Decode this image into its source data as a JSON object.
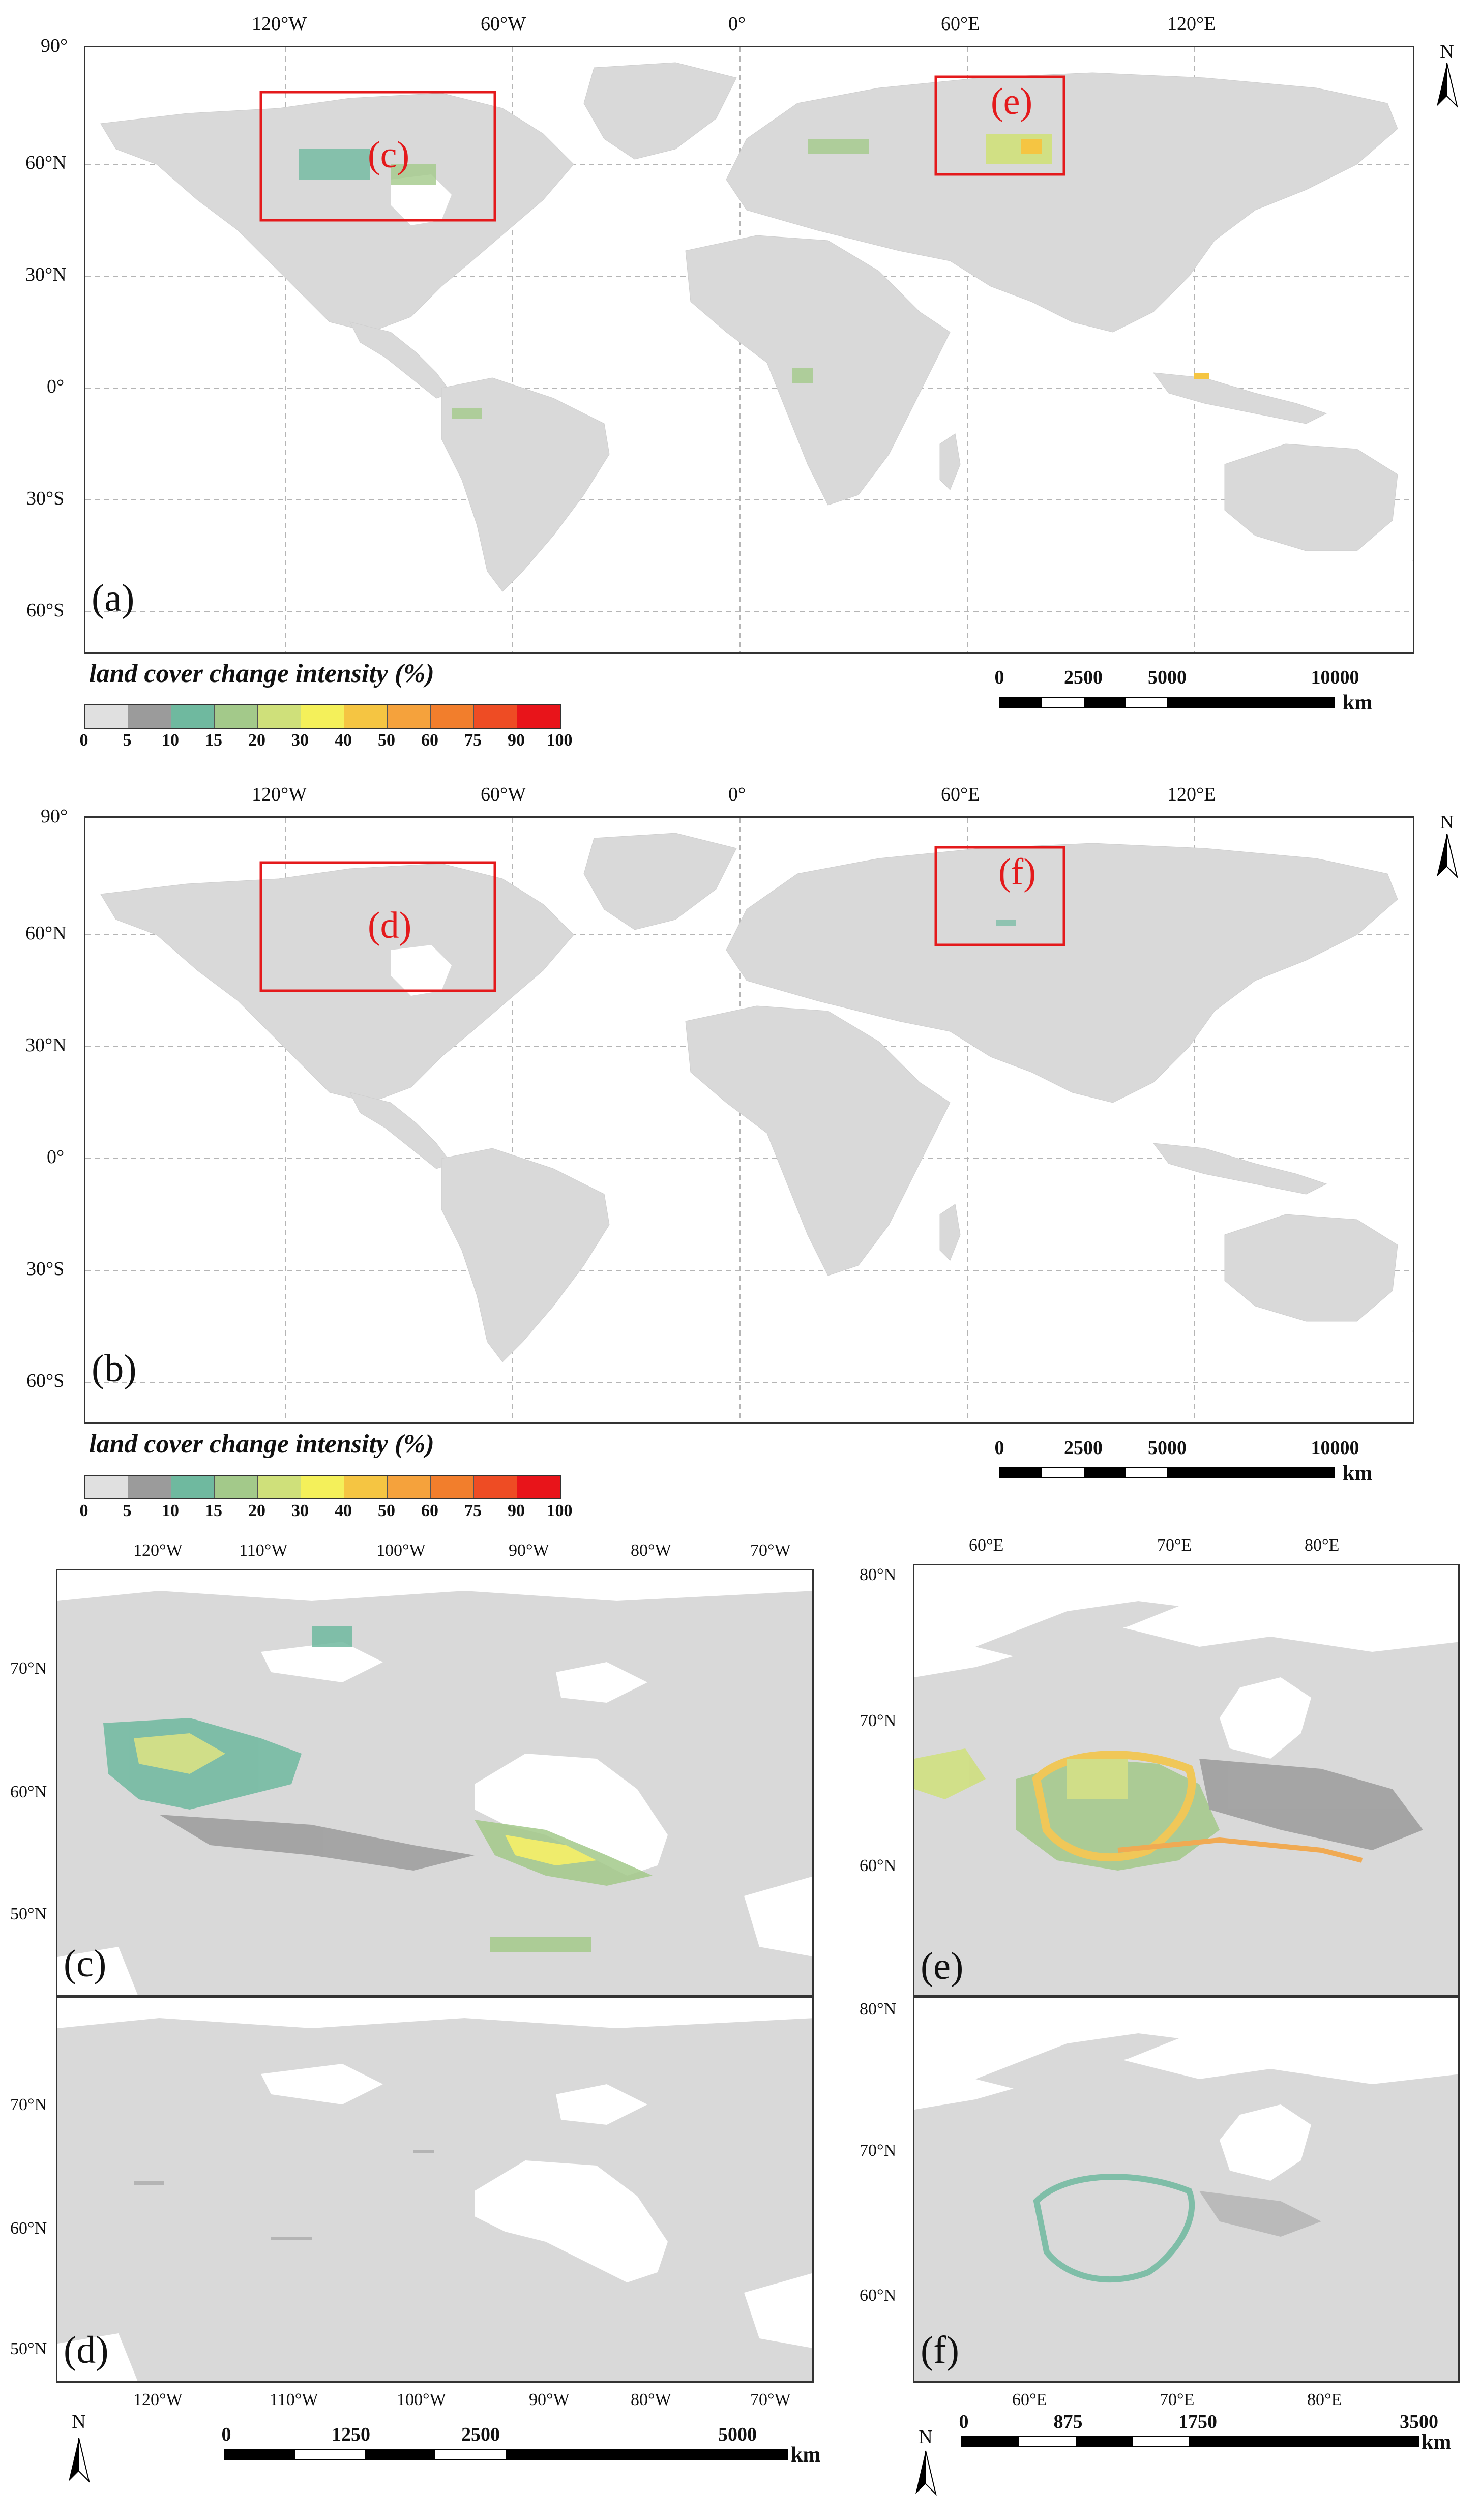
{
  "colors": {
    "land": "#d9d9d9",
    "water": "#ffffff",
    "box": "#e41a1c",
    "grid": "#b5b5b5"
  },
  "panels": {
    "a": {
      "label": "(a)"
    },
    "b": {
      "label": "(b)"
    },
    "c": {
      "label": "(c)"
    },
    "d": {
      "label": "(d)"
    },
    "e": {
      "label": "(e)"
    },
    "f": {
      "label": "(f)"
    }
  },
  "region_labels": {
    "c": "(c)",
    "d": "(d)",
    "e": "(e)",
    "f": "(f)"
  },
  "world_ticks": {
    "lon": [
      "120°W",
      "60°W",
      "0°",
      "60°E",
      "120°E"
    ],
    "lat": [
      "90°",
      "60°N",
      "30°N",
      "0°",
      "30°S",
      "60°S"
    ]
  },
  "canada_ticks": {
    "lon": [
      "120°W",
      "110°W",
      "100°W",
      "90°W",
      "80°W",
      "70°W"
    ],
    "lat": [
      "70°N",
      "60°N",
      "50°N"
    ]
  },
  "siberia_ticks": {
    "lon": [
      "60°E",
      "70°E",
      "80°E"
    ],
    "lat": [
      "80°N",
      "70°N",
      "60°N"
    ]
  },
  "legend": {
    "title": "land cover change intensity (%)",
    "ticks": [
      "0",
      "5",
      "10",
      "15",
      "20",
      "30",
      "40",
      "50",
      "60",
      "75",
      "90",
      "100"
    ],
    "colors": [
      "#e0e0e0",
      "#9b9b9b",
      "#6fb99f",
      "#a3c98a",
      "#cfe07a",
      "#f4f05a",
      "#f5c542",
      "#f5a23c",
      "#f27e2c",
      "#ee4c24",
      "#e8141a"
    ]
  },
  "scalebars": {
    "world": {
      "ticks": [
        "0",
        "2500",
        "5000",
        "10000"
      ],
      "unit": "km"
    },
    "canada": {
      "ticks": [
        "0",
        "1250",
        "2500",
        "5000"
      ],
      "unit": "km"
    },
    "siberia": {
      "ticks": [
        "0",
        "875",
        "1750",
        "3500"
      ],
      "unit": "km"
    }
  },
  "north_label": "N"
}
